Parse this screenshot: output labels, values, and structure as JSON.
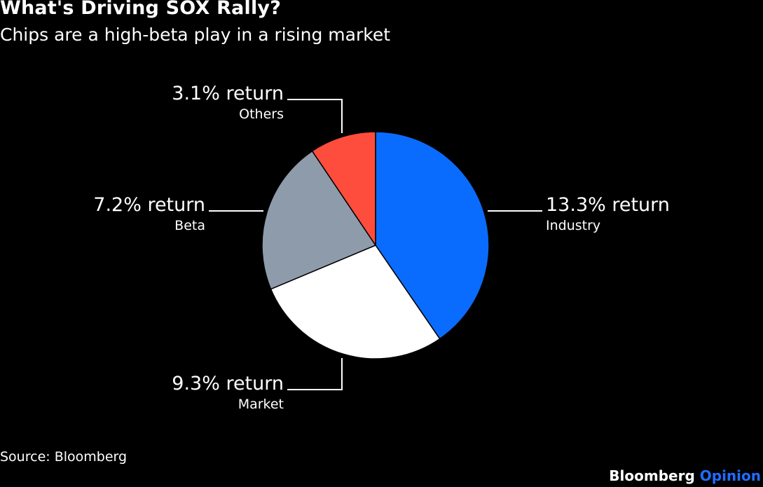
{
  "title": "What's Driving SOX Rally?",
  "subtitle": "Chips are a high-beta play in a rising market",
  "source": "Source: Bloomberg",
  "brand": {
    "name": "Bloomberg",
    "suffix": "Opinion"
  },
  "colors": {
    "background": "#000000",
    "text": "#ffffff",
    "brand_accent": "#1f6dff"
  },
  "chart_data": {
    "type": "pie",
    "start": "12 o'clock",
    "direction": "clockwise",
    "slices": [
      {
        "label": "Industry",
        "value": 13.3,
        "value_label": "13.3% return",
        "color": "#0a6cff"
      },
      {
        "label": "Market",
        "value": 9.3,
        "value_label": "9.3% return",
        "color": "#ffffff"
      },
      {
        "label": "Beta",
        "value": 7.2,
        "value_label": "7.2% return",
        "color": "#8e9bab"
      },
      {
        "label": "Others",
        "value": 3.1,
        "value_label": "3.1% return",
        "color": "#ff4d3d"
      }
    ]
  }
}
